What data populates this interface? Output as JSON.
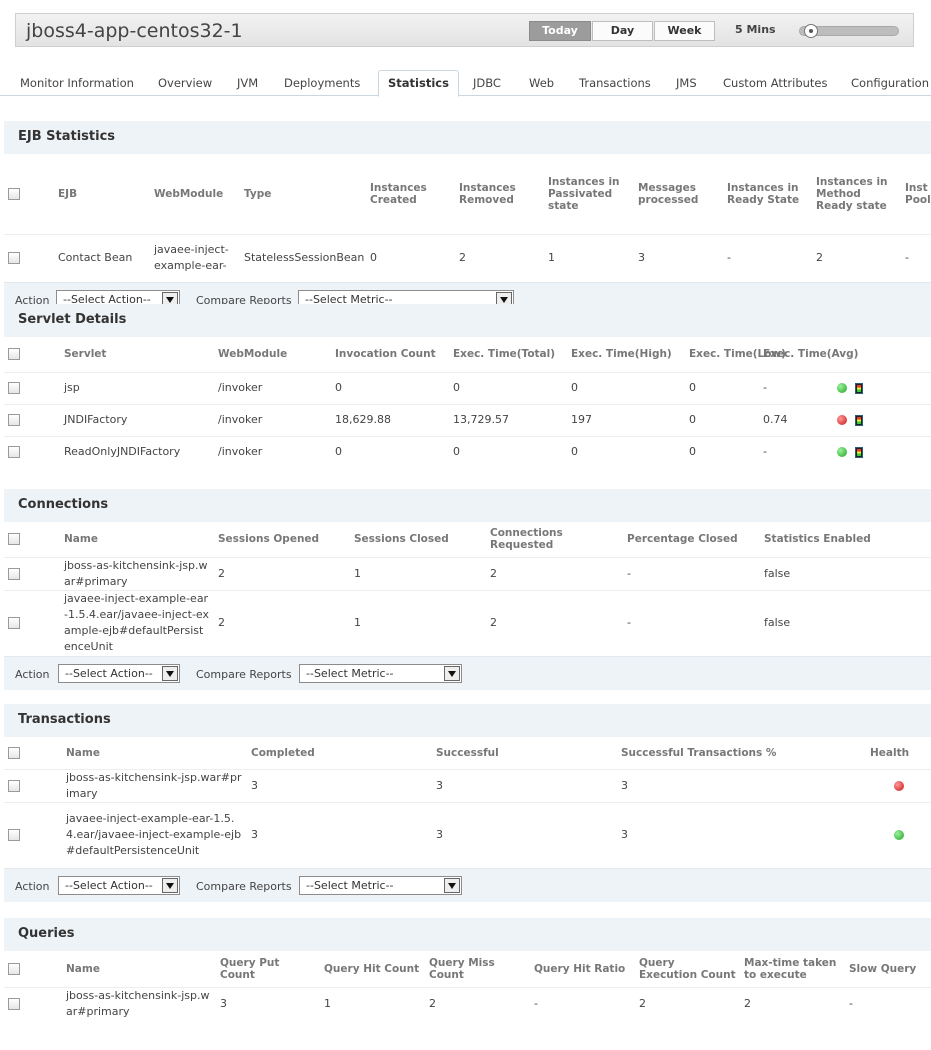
{
  "app": {
    "title": "jboss4-app-centos32-1"
  },
  "range": {
    "today": "Today",
    "day": "Day",
    "week": "Week",
    "interval": "5 Mins"
  },
  "tabs": [
    "Monitor Information",
    "Overview",
    "JVM",
    "Deployments",
    "Statistics",
    "JDBC",
    "Web",
    "Transactions",
    "JMS",
    "Custom Attributes",
    "Configuration"
  ],
  "common": {
    "action_label": "Action",
    "select_action": "--Select Action--",
    "compare_label": "Compare Reports",
    "select_metric": "--Select Metric--"
  },
  "ejb": {
    "title": "EJB Statistics",
    "headers": [
      "EJB",
      "WebModule",
      "Type",
      "Instances Created",
      "Instances Removed",
      "Instances in Passivated state",
      "Messages processed",
      "Instances in Ready State",
      "Instances in Method Ready state",
      "Inst Pool"
    ],
    "rows": [
      [
        "Contact Bean",
        "javaee-inject-example-ear-",
        "StatelessSessionBean",
        "0",
        "2",
        "1",
        "3",
        "-",
        "2",
        "-"
      ]
    ]
  },
  "servlet": {
    "title": "Servlet Details",
    "headers": [
      "Servlet",
      "WebModule",
      "Invocation Count",
      "Exec. Time(Total)",
      "Exec. Time(High)",
      "Exec. Time(Low)",
      "Exec. Time(Avg)"
    ],
    "rows": [
      [
        "jsp",
        "/invoker",
        "0",
        "0",
        "0",
        "0",
        "-",
        "green"
      ],
      [
        "JNDIFactory",
        "/invoker",
        "18,629.88",
        "13,729.57",
        "197",
        "0",
        "0.74",
        "red"
      ],
      [
        "ReadOnlyJNDIFactory",
        "/invoker",
        "0",
        "0",
        "0",
        "0",
        "-",
        "green"
      ]
    ]
  },
  "connections": {
    "title": "Connections",
    "headers": [
      "Name",
      "Sessions Opened",
      "Sessions Closed",
      "Connections Requested",
      "Percentage Closed",
      "Statistics Enabled"
    ],
    "rows": [
      [
        "jboss-as-kitchensink-jsp.war#primary",
        "2",
        "1",
        "2",
        "-",
        "false"
      ],
      [
        "javaee-inject-example-ear-1.5.4.ear/javaee-inject-example-ejb#defaultPersistenceUnit",
        "2",
        "1",
        "2",
        "-",
        "false"
      ]
    ]
  },
  "transactions": {
    "title": "Transactions",
    "headers": [
      "Name",
      "Completed",
      "Successful",
      "Successful Transactions  %",
      "Health"
    ],
    "rows": [
      [
        "jboss-as-kitchensink-jsp.war#primary",
        "3",
        "3",
        "3",
        "red"
      ],
      [
        "javaee-inject-example-ear-1.5.4.ear/javaee-inject-example-ejb#defaultPersistenceUnit",
        "3",
        "3",
        "3",
        "green"
      ]
    ]
  },
  "queries": {
    "title": "Queries",
    "headers": [
      "Name",
      "Query Put Count",
      "Query Hit Count",
      "Query Miss Count",
      "Query Hit Ratio",
      "Query Execution Count",
      "Max-time taken to execute",
      "Slow Query"
    ],
    "rows": [
      [
        "jboss-as-kitchensink-jsp.war#primary",
        "3",
        "1",
        "2",
        "-",
        "2",
        "2",
        "-"
      ]
    ]
  }
}
